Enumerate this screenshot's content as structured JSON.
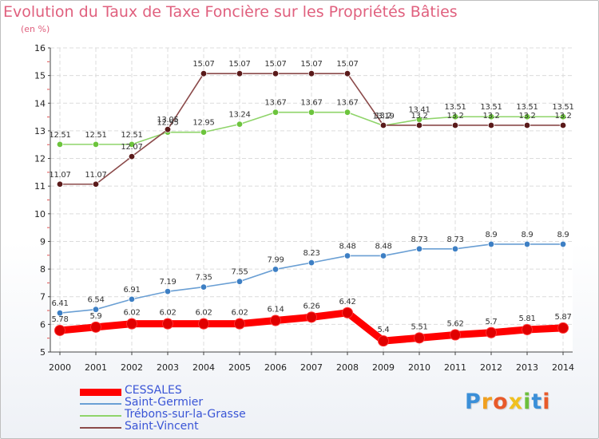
{
  "header": {
    "title": "Evolution du Taux de Taxe Foncière sur les Propriétés Bâties",
    "subtitle": "(en %)"
  },
  "brand": {
    "logo_text": "Proxiti"
  },
  "chart_data": {
    "type": "line",
    "title": "Evolution du Taux de Taxe Foncière sur les Propriétés Bâties",
    "ylabel": "(en %)",
    "xlabel": "",
    "ylim": [
      5,
      16
    ],
    "yticks": [
      5,
      6,
      7,
      8,
      9,
      10,
      11,
      12,
      13,
      14,
      15,
      16
    ],
    "grid": true,
    "legend_position": "bottom-left",
    "categories": [
      "2000",
      "2001",
      "2002",
      "2003",
      "2004",
      "2005",
      "2006",
      "2007",
      "2008",
      "2009",
      "2010",
      "2011",
      "2012",
      "2013",
      "2014"
    ],
    "series": [
      {
        "name": "CESSALES",
        "color": "#ff0000",
        "point_color": "#e00000",
        "thick": true,
        "values": [
          5.78,
          5.9,
          6.02,
          6.02,
          6.02,
          6.02,
          6.14,
          6.26,
          6.42,
          5.4,
          5.51,
          5.62,
          5.7,
          5.81,
          5.87
        ],
        "labels": [
          "5.78",
          "5.9",
          "6.02",
          "6.02",
          "6.02",
          "6.02",
          "6.14",
          "6.26",
          "6.42",
          "5.4",
          "5.51",
          "5.62",
          "5.7",
          "5.81",
          "5.87"
        ]
      },
      {
        "name": "Saint-Germier",
        "color": "#6a9fd4",
        "point_color": "#3d7fc4",
        "thick": false,
        "values": [
          6.41,
          6.54,
          6.91,
          7.19,
          7.35,
          7.55,
          7.99,
          8.23,
          8.48,
          8.48,
          8.73,
          8.73,
          8.9,
          8.9,
          8.9
        ],
        "labels": [
          "6.41",
          "6.54",
          "6.91",
          "7.19",
          "7.35",
          "7.55",
          "7.99",
          "8.23",
          "8.48",
          "8.48",
          "8.73",
          "8.73",
          "8.9",
          "8.9",
          "8.9"
        ]
      },
      {
        "name": "Trébons-sur-la-Grasse",
        "color": "#8fd46a",
        "point_color": "#6cc43c",
        "thick": false,
        "values": [
          12.51,
          12.51,
          12.51,
          12.95,
          12.95,
          13.24,
          13.67,
          13.67,
          13.67,
          13.19,
          13.41,
          13.51,
          13.51,
          13.51,
          13.51
        ],
        "labels": [
          "12.51",
          "12.51",
          "12.51",
          "12.95",
          "12.95",
          "13.24",
          "13.67",
          "13.67",
          "13.67",
          "13.19",
          "13.41",
          "13.51",
          "13.51",
          "13.51",
          "13.51"
        ]
      },
      {
        "name": "Saint-Vincent",
        "color": "#8b4a4a",
        "point_color": "#5a1a1a",
        "thick": false,
        "values": [
          11.07,
          11.07,
          12.07,
          13.05,
          15.07,
          15.07,
          15.07,
          15.07,
          15.07,
          13.2,
          13.2,
          13.2,
          13.2,
          13.2,
          13.2
        ],
        "labels": [
          "11.07",
          "11.07",
          "12.07",
          "13.05",
          "15.07",
          "15.07",
          "15.07",
          "15.07",
          "15.07",
          "13.2",
          "13.2",
          "13.2",
          "13.2",
          "13.2",
          "13.2"
        ]
      }
    ]
  }
}
